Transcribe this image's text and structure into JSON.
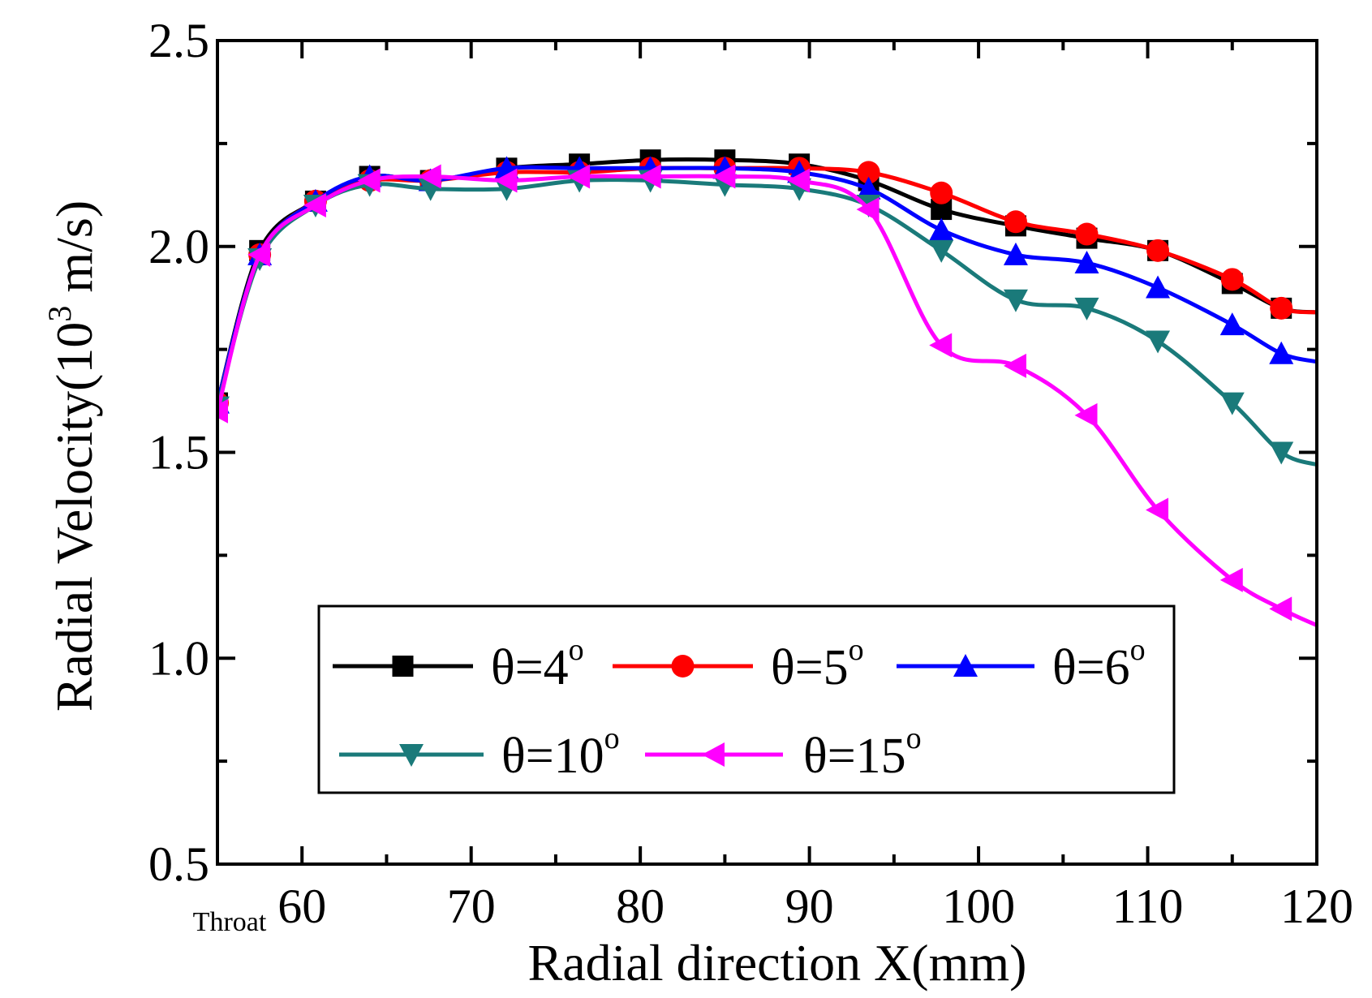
{
  "chart_data": {
    "type": "line",
    "title": "",
    "xlabel": "Radial direction X(mm)",
    "ylabel_main": "Radial Velocity(10",
    "ylabel_sup": "3",
    "ylabel_tail": " m/s)",
    "xlim": [
      55,
      120
    ],
    "ylim": [
      0.5,
      2.5
    ],
    "xticks": [
      60,
      70,
      80,
      90,
      100,
      110,
      120
    ],
    "xtick_labels": [
      "60",
      "70",
      "80",
      "90",
      "100",
      "110",
      "120"
    ],
    "yticks": [
      0.5,
      1.0,
      1.5,
      2.0,
      2.5
    ],
    "ytick_labels": [
      "0.5",
      "1.0",
      "1.5",
      "2.0",
      "2.5"
    ],
    "x_annotation": {
      "text": "Throat",
      "x": 55
    },
    "grid": false,
    "legend_position": "lower-center",
    "series": [
      {
        "name": "θ=4",
        "sup": "o",
        "color": "#000000",
        "marker": "square",
        "x": [
          55,
          57.5,
          60.8,
          64,
          67.6,
          72.1,
          76.4,
          80.6,
          85,
          89.4,
          93.5,
          97.8,
          102.2,
          106.4,
          110.6,
          115,
          117.9,
          120
        ],
        "y": [
          1.62,
          1.99,
          2.11,
          2.17,
          2.16,
          2.19,
          2.2,
          2.21,
          2.21,
          2.2,
          2.16,
          2.09,
          2.05,
          2.02,
          1.99,
          1.91,
          1.85,
          1.84
        ]
      },
      {
        "name": "θ=5",
        "sup": "o",
        "color": "#ff0000",
        "marker": "circle",
        "x": [
          55,
          57.5,
          60.8,
          64,
          67.6,
          72.1,
          76.4,
          80.6,
          85,
          89.4,
          93.5,
          97.8,
          102.2,
          106.4,
          110.6,
          115,
          117.9,
          120
        ],
        "y": [
          1.62,
          1.98,
          2.11,
          2.16,
          2.16,
          2.18,
          2.18,
          2.19,
          2.19,
          2.19,
          2.18,
          2.13,
          2.06,
          2.03,
          1.99,
          1.92,
          1.85,
          1.84
        ]
      },
      {
        "name": "θ=6",
        "sup": "o",
        "color": "#0000ff",
        "marker": "triangle-up",
        "x": [
          55,
          57.5,
          60.8,
          64,
          67.6,
          72.1,
          76.4,
          80.6,
          85,
          89.4,
          93.5,
          97.8,
          102.2,
          106.4,
          110.6,
          115,
          117.9,
          120
        ],
        "y": [
          1.62,
          1.98,
          2.11,
          2.17,
          2.16,
          2.19,
          2.19,
          2.19,
          2.19,
          2.18,
          2.14,
          2.04,
          1.98,
          1.96,
          1.9,
          1.81,
          1.74,
          1.72
        ]
      },
      {
        "name": "θ=10",
        "sup": "o",
        "color": "#1a7a7a",
        "marker": "triangle-down",
        "x": [
          55,
          57.5,
          60.8,
          64,
          67.6,
          72.1,
          76.4,
          80.6,
          85,
          89.4,
          93.5,
          97.8,
          102.2,
          106.4,
          110.6,
          115,
          117.9,
          120
        ],
        "y": [
          1.61,
          1.97,
          2.1,
          2.15,
          2.14,
          2.14,
          2.16,
          2.16,
          2.15,
          2.14,
          2.1,
          1.99,
          1.87,
          1.85,
          1.77,
          1.62,
          1.5,
          1.47
        ]
      },
      {
        "name": "θ=15",
        "sup": "o",
        "color": "#ff00ff",
        "marker": "triangle-left",
        "x": [
          55,
          57.5,
          60.8,
          64,
          67.6,
          72.1,
          76.4,
          80.6,
          85,
          89.4,
          93.5,
          97.8,
          102.2,
          106.4,
          110.6,
          115,
          117.9,
          120
        ],
        "y": [
          1.6,
          1.98,
          2.1,
          2.16,
          2.17,
          2.16,
          2.17,
          2.17,
          2.17,
          2.16,
          2.09,
          1.76,
          1.71,
          1.59,
          1.36,
          1.19,
          1.12,
          1.08
        ]
      }
    ]
  }
}
